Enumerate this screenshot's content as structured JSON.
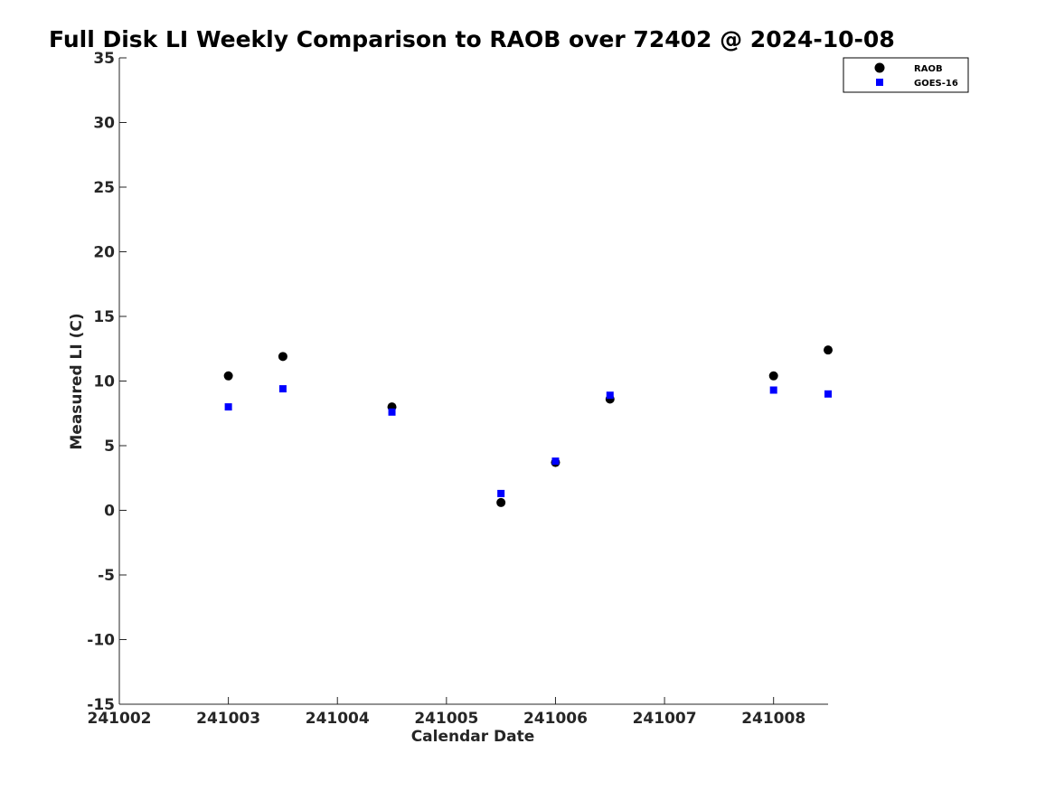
{
  "chart_data": {
    "type": "scatter",
    "title": "Full Disk LI Weekly Comparison to RAOB over 72402 @ 2024-10-08",
    "xlabel": "Calendar Date",
    "ylabel": "Measured LI (C)",
    "xlim": [
      241002,
      241008.5
    ],
    "ylim": [
      -15,
      35
    ],
    "xticks": [
      241002,
      241003,
      241004,
      241005,
      241006,
      241007,
      241008
    ],
    "xtick_labels": [
      "241002",
      "241003",
      "241004",
      "241005",
      "241006",
      "241007",
      "241008"
    ],
    "yticks": [
      35,
      30,
      25,
      20,
      15,
      10,
      5,
      0,
      -5,
      -10,
      -15
    ],
    "ytick_labels": [
      "35",
      "30",
      "25",
      "20",
      "15",
      "10",
      "5",
      "0",
      "-5",
      "-10",
      "-15"
    ],
    "grid": false,
    "legend_position": "top-right",
    "series": [
      {
        "name": "RAOB",
        "marker": "circle",
        "color": "#000000",
        "x": [
          241003,
          241003.5,
          241004.5,
          241005.5,
          241006,
          241006.5,
          241008,
          241008.5
        ],
        "y": [
          10.4,
          11.9,
          8.0,
          0.6,
          3.7,
          8.6,
          10.4,
          12.4
        ]
      },
      {
        "name": "GOES-16",
        "marker": "square",
        "color": "#0000ff",
        "x": [
          241003,
          241003.5,
          241004.5,
          241005.5,
          241006,
          241006.5,
          241008,
          241008.5
        ],
        "y": [
          8.0,
          9.4,
          7.6,
          1.3,
          3.8,
          8.9,
          9.3,
          9.0
        ]
      }
    ]
  }
}
